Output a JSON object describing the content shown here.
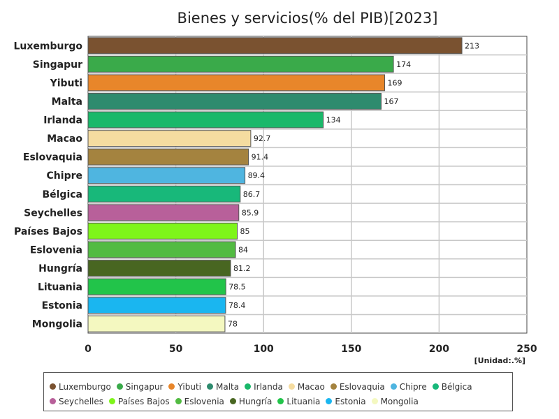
{
  "chart_data": {
    "type": "bar",
    "orientation": "horizontal",
    "title": "Bienes y servicios(% del PIB)[2023]",
    "unit_label": "[Unidad:.%]",
    "xlim": [
      0,
      250
    ],
    "xticks": [
      0,
      50,
      100,
      150,
      200,
      250
    ],
    "grid": true,
    "legend_position": "bottom",
    "categories": [
      "Luxemburgo",
      "Singapur",
      "Yibuti",
      "Malta",
      "Irlanda",
      "Macao",
      "Eslovaquia",
      "Chipre",
      "Bélgica",
      "Seychelles",
      "Países Bajos",
      "Eslovenia",
      "Hungría",
      "Lituania",
      "Estonia",
      "Mongolia"
    ],
    "values": [
      213,
      174,
      169,
      167,
      134,
      92.7,
      91.4,
      89.4,
      86.7,
      85.9,
      85,
      84,
      81.2,
      78.5,
      78.4,
      78
    ],
    "value_labels": [
      "213",
      "174",
      "169",
      "167",
      "134",
      "92.7",
      "91.4",
      "89.4",
      "86.7",
      "85.9",
      "85",
      "84",
      "81.2",
      "78.5",
      "78.4",
      "78"
    ],
    "colors": [
      "#7a5230",
      "#3aaa4a",
      "#e8862a",
      "#2e8b6e",
      "#1ab86a",
      "#f5dca0",
      "#a4833f",
      "#4fb5e0",
      "#18b87a",
      "#b8609a",
      "#7ef51a",
      "#52bb42",
      "#486621",
      "#22c44a",
      "#1ab6f0",
      "#f4f8c0"
    ]
  }
}
